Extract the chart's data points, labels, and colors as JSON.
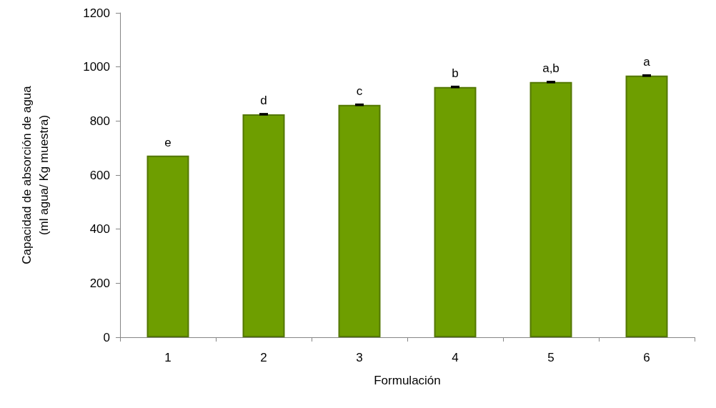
{
  "chart_data": {
    "type": "bar",
    "xlabel": "Formulación",
    "ylabel": "Capacidad de absorción de agua\n(ml agua/ Kg muestra)",
    "categories": [
      "1",
      "2",
      "3",
      "4",
      "5",
      "6"
    ],
    "values": [
      672,
      825,
      860,
      926,
      944,
      968
    ],
    "errors": [
      null,
      2,
      2,
      2,
      2,
      2
    ],
    "color": "#6e9e00",
    "ylim": [
      0,
      1200
    ],
    "yticks": [
      0,
      200,
      400,
      600,
      800,
      1000,
      1200
    ],
    "grid": false,
    "annotations": [
      {
        "text": "e",
        "x": "1",
        "y": 672
      },
      {
        "text": "d",
        "x": "2",
        "y": 827
      },
      {
        "text": "c",
        "x": "3",
        "y": 862
      },
      {
        "text": "b",
        "x": "4",
        "y": 928
      },
      {
        "text": "a,b",
        "x": "5",
        "y": 946
      },
      {
        "text": "a",
        "x": "6",
        "y": 970
      }
    ]
  }
}
